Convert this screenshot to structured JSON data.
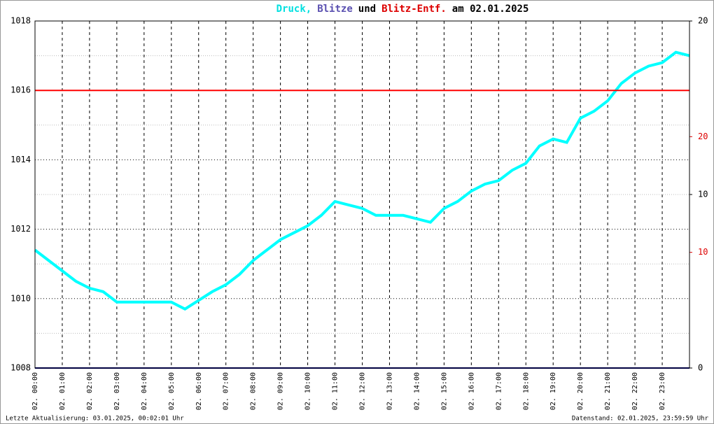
{
  "chart_data": {
    "type": "line",
    "title_parts": [
      {
        "text": "Druck,",
        "color": "#00e0e0"
      },
      {
        "text": "Blitze",
        "color": "#5a50b0"
      },
      {
        "text": "und",
        "color": "#000000"
      },
      {
        "text": "Blitz-Entf.",
        "color": "#dd0000"
      },
      {
        "text": "am 02.01.2025",
        "color": "#000000"
      }
    ],
    "x": [
      0,
      0.5,
      1,
      1.5,
      2,
      2.5,
      3,
      3.5,
      4,
      4.5,
      5,
      5.5,
      6,
      6.5,
      7,
      7.5,
      8,
      8.5,
      9,
      9.5,
      10,
      10.5,
      11,
      11.5,
      12,
      12.5,
      13,
      13.5,
      14,
      14.5,
      15,
      15.5,
      16,
      16.5,
      17,
      17.5,
      18,
      18.5,
      19,
      19.5,
      20,
      20.5,
      21,
      21.5,
      22,
      22.5,
      23,
      23.5,
      24
    ],
    "series": [
      {
        "name": "Druck",
        "color": "#00ffff",
        "values": [
          1011.4,
          1011.1,
          1010.8,
          1010.5,
          1010.3,
          1010.2,
          1009.9,
          1009.9,
          1009.9,
          1009.9,
          1009.9,
          1009.7,
          1009.95,
          1010.2,
          1010.4,
          1010.7,
          1011.1,
          1011.4,
          1011.7,
          1011.9,
          1012.1,
          1012.4,
          1012.8,
          1012.7,
          1012.6,
          1012.4,
          1012.4,
          1012.4,
          1012.3,
          1012.2,
          1012.6,
          1012.8,
          1013.1,
          1013.3,
          1013.4,
          1013.7,
          1013.9,
          1014.4,
          1014.6,
          1014.5,
          1015.2,
          1015.4,
          1015.7,
          1016.2,
          1016.5,
          1016.7,
          1016.8,
          1017.1,
          1017.0
        ]
      },
      {
        "name": "Blitze",
        "color": "#000080",
        "axis": "y2",
        "x": [
          0,
          24
        ],
        "values": [
          0,
          0
        ]
      },
      {
        "name": "Blitz-Entf.",
        "color": "#ff0000",
        "axis": "y3",
        "x": [
          0,
          24
        ],
        "values": [
          24,
          24
        ]
      }
    ],
    "xlim": [
      0,
      24
    ],
    "xticks": [
      {
        "value": 0,
        "label": "02. 00:00"
      },
      {
        "value": 1,
        "label": "02. 01:00"
      },
      {
        "value": 2,
        "label": "02. 02:00"
      },
      {
        "value": 3,
        "label": "02. 03:00"
      },
      {
        "value": 4,
        "label": "02. 04:00"
      },
      {
        "value": 5,
        "label": "02. 05:00"
      },
      {
        "value": 6,
        "label": "02. 06:00"
      },
      {
        "value": 7,
        "label": "02. 07:00"
      },
      {
        "value": 8,
        "label": "02. 08:00"
      },
      {
        "value": 9,
        "label": "02. 09:00"
      },
      {
        "value": 10,
        "label": "02. 10:00"
      },
      {
        "value": 11,
        "label": "02. 11:00"
      },
      {
        "value": 12,
        "label": "02. 12:00"
      },
      {
        "value": 13,
        "label": "02. 13:00"
      },
      {
        "value": 14,
        "label": "02. 14:00"
      },
      {
        "value": 15,
        "label": "02. 15:00"
      },
      {
        "value": 16,
        "label": "02. 16:00"
      },
      {
        "value": 17,
        "label": "02. 17:00"
      },
      {
        "value": 18,
        "label": "02. 18:00"
      },
      {
        "value": 19,
        "label": "02. 19:00"
      },
      {
        "value": 20,
        "label": "02. 20:00"
      },
      {
        "value": 21,
        "label": "02. 21:00"
      },
      {
        "value": 22,
        "label": "02. 22:00"
      },
      {
        "value": 23,
        "label": "02. 23:00"
      }
    ],
    "ylim": [
      1008,
      1018
    ],
    "yticks": [
      1008,
      1010,
      1012,
      1014,
      1016,
      1018
    ],
    "y2lim": [
      0,
      20
    ],
    "y2ticks": [
      0,
      10,
      20
    ],
    "y2color": "#000000",
    "y3lim": [
      0,
      30
    ],
    "y3ticks": [
      10,
      20
    ],
    "y3color": "#dd0000",
    "grid": true,
    "footer_left": "Letzte Aktualisierung: 03.01.2025, 00:02:01 Uhr",
    "footer_right": "Datenstand: 02.01.2025, 23:59:59 Uhr"
  }
}
